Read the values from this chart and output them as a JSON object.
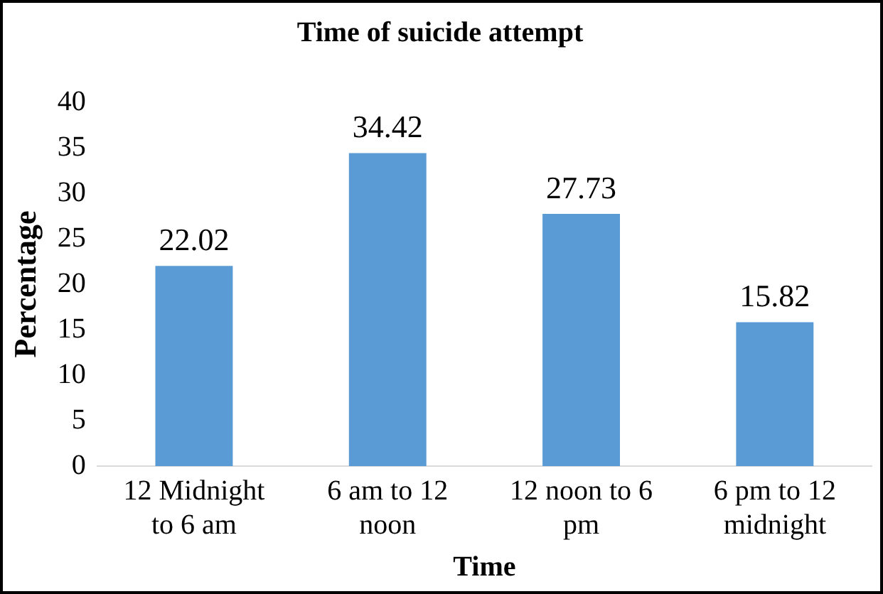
{
  "chart_data": {
    "type": "bar",
    "title": "Time of suicide attempt",
    "xlabel": "Time",
    "ylabel": "Percentage",
    "categories": [
      "12 Midnight to 6 am",
      "6 am to 12 noon",
      "12 noon to 6 pm",
      "6 pm to 12 midnight"
    ],
    "values": [
      22.02,
      34.42,
      27.73,
      15.82
    ],
    "color": "#5b9bd5",
    "ylim": [
      0,
      40
    ],
    "yticks": [
      0,
      5,
      10,
      15,
      20,
      25,
      30,
      35,
      40
    ],
    "grid": false,
    "legend": false,
    "data_labels": true
  }
}
